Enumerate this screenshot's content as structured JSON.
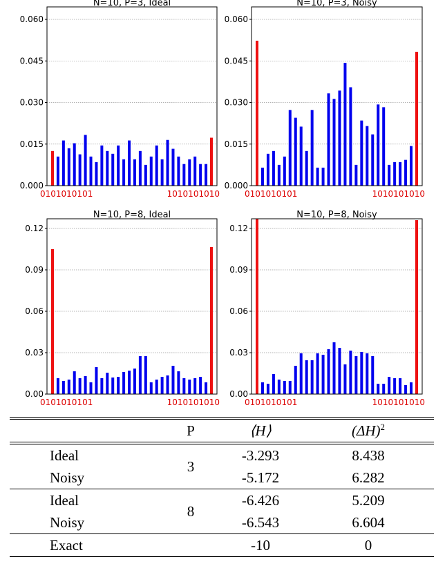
{
  "charts": [
    {
      "title": "N=10, P=3, Ideal",
      "yticks": [
        "0.000",
        "0.015",
        "0.030",
        "0.045",
        "0.060"
      ],
      "ymax": 0.0645,
      "first_label": "0101010101",
      "last_label": "1010101010",
      "colors": {
        "regular": "#0000ee",
        "special": "#ee1111"
      }
    },
    {
      "title": "N=10, P=3, Noisy",
      "yticks": [
        "0.000",
        "0.015",
        "0.030",
        "0.045",
        "0.060"
      ],
      "ymax": 0.0645,
      "first_label": "0101010101",
      "last_label": "1010101010",
      "colors": {
        "regular": "#0000ee",
        "special": "#ee1111"
      }
    },
    {
      "title": "N=10, P=8, Ideal",
      "yticks": [
        "0.00",
        "0.03",
        "0.06",
        "0.09",
        "0.12"
      ],
      "ymax": 0.127,
      "first_label": "0101010101",
      "last_label": "1010101010",
      "colors": {
        "regular": "#0000ee",
        "special": "#ee1111"
      }
    },
    {
      "title": "N=10, P=8, Noisy",
      "yticks": [
        "0.00",
        "0.03",
        "0.06",
        "0.09",
        "0.12"
      ],
      "ymax": 0.127,
      "first_label": "0101010101",
      "last_label": "1010101010",
      "colors": {
        "regular": "#0000ee",
        "special": "#ee1111"
      }
    }
  ],
  "chart_data": [
    {
      "type": "bar",
      "title": "N=10, P=3, Ideal",
      "ylim": [
        0,
        0.0645
      ],
      "first_category": "0101010101",
      "last_category": "1010101010",
      "values": [
        0.0125,
        0.0105,
        0.0163,
        0.0135,
        0.0153,
        0.0113,
        0.0183,
        0.0105,
        0.0085,
        0.0145,
        0.0125,
        0.0115,
        0.0145,
        0.0095,
        0.0163,
        0.0095,
        0.0125,
        0.0075,
        0.0105,
        0.0145,
        0.0095,
        0.0165,
        0.0133,
        0.0105,
        0.0078,
        0.0095,
        0.0105,
        0.0078,
        0.0078,
        0.0173
      ],
      "highlighted_indices": [
        0,
        29
      ]
    },
    {
      "type": "bar",
      "title": "N=10, P=3, Noisy",
      "ylim": [
        0,
        0.0645
      ],
      "first_category": "0101010101",
      "last_category": "1010101010",
      "values": [
        0.0523,
        0.0065,
        0.0115,
        0.0125,
        0.0075,
        0.0105,
        0.0273,
        0.0245,
        0.0213,
        0.0125,
        0.0273,
        0.0065,
        0.0065,
        0.0333,
        0.0313,
        0.0343,
        0.0443,
        0.0355,
        0.0075,
        0.0235,
        0.0215,
        0.0185,
        0.0293,
        0.0283,
        0.0075,
        0.0085,
        0.0085,
        0.0093,
        0.0143,
        0.0483
      ],
      "highlighted_indices": [
        0,
        29
      ]
    },
    {
      "type": "bar",
      "title": "N=10, P=8, Ideal",
      "ylim": [
        0,
        0.127
      ],
      "first_category": "0101010101",
      "last_category": "1010101010",
      "values": [
        0.105,
        0.0115,
        0.0095,
        0.0105,
        0.0165,
        0.0115,
        0.013,
        0.0085,
        0.0195,
        0.0115,
        0.0155,
        0.012,
        0.0125,
        0.016,
        0.017,
        0.0185,
        0.0275,
        0.0275,
        0.0085,
        0.0105,
        0.0125,
        0.0135,
        0.0205,
        0.0165,
        0.0115,
        0.0105,
        0.0115,
        0.0125,
        0.0085,
        0.1065
      ],
      "highlighted_indices": [
        0,
        29
      ]
    },
    {
      "type": "bar",
      "title": "N=10, P=8, Noisy",
      "ylim": [
        0,
        0.127
      ],
      "first_category": "0101010101",
      "last_category": "1010101010",
      "values": [
        0.127,
        0.0085,
        0.0075,
        0.0145,
        0.0105,
        0.0095,
        0.0095,
        0.0205,
        0.0295,
        0.0245,
        0.0245,
        0.0295,
        0.0285,
        0.0325,
        0.0375,
        0.0335,
        0.0215,
        0.0315,
        0.0275,
        0.0305,
        0.0295,
        0.0275,
        0.0075,
        0.0075,
        0.0125,
        0.0115,
        0.0115,
        0.0065,
        0.0085,
        0.126
      ],
      "highlighted_indices": [
        0,
        29
      ]
    }
  ],
  "table": {
    "headers": [
      "",
      "P",
      "⟨H⟩",
      "(ΔH)",
      "2"
    ],
    "groups": [
      {
        "p": "3",
        "rows": [
          {
            "label": "Ideal",
            "H": "-3.293",
            "dH2": "8.438"
          },
          {
            "label": "Noisy",
            "H": "-5.172",
            "dH2": "6.282"
          }
        ]
      },
      {
        "p": "8",
        "rows": [
          {
            "label": "Ideal",
            "H": "-6.426",
            "dH2": "5.209"
          },
          {
            "label": "Noisy",
            "H": "-6.543",
            "dH2": "6.604"
          }
        ]
      }
    ],
    "exact": {
      "label": "Exact",
      "H": "-10",
      "dH2": "0"
    }
  }
}
